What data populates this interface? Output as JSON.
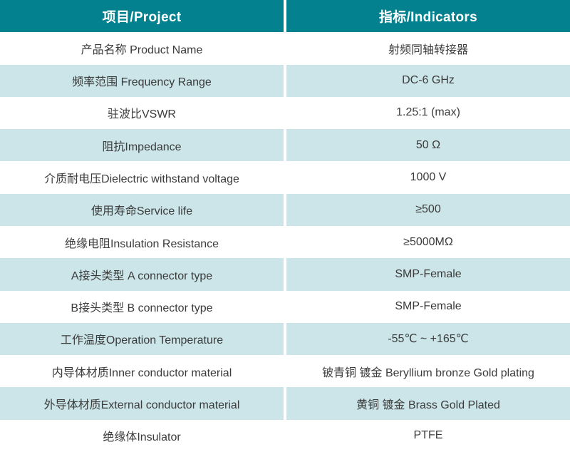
{
  "colors": {
    "header_bg": "#03818E",
    "header_text": "#FFFFFF",
    "row_alt_bg": "#CBE5E9",
    "row_bg": "#FFFFFF",
    "body_text": "#3B3B3B"
  },
  "table": {
    "header": {
      "project": "项目/Project",
      "indicators": "指标/Indicators"
    },
    "rows": [
      {
        "project": "产品名称 Product Name",
        "indicator": "射频同轴转接器"
      },
      {
        "project": "频率范围 Frequency Range",
        "indicator": "DC-6 GHz"
      },
      {
        "project": "驻波比VSWR",
        "indicator": "1.25:1 (max)"
      },
      {
        "project": "阻抗Impedance",
        "indicator": "50 Ω"
      },
      {
        "project": "介质耐电压Dielectric withstand voltage",
        "indicator": "1000 V"
      },
      {
        "project": "使用寿命Service life",
        "indicator": "≥500"
      },
      {
        "project": "绝缘电阻Insulation Resistance",
        "indicator": "≥5000MΩ"
      },
      {
        "project": "A接头类型 A connector type",
        "indicator": "SMP-Female"
      },
      {
        "project": "B接头类型 B connector type",
        "indicator": "SMP-Female"
      },
      {
        "project": "工作温度Operation Temperature",
        "indicator": "-55℃ ~ +165℃"
      },
      {
        "project": "内导体材质Inner conductor material",
        "indicator": "铍青铜 镀金 Beryllium bronze Gold plating"
      },
      {
        "project": "外导体材质External conductor material",
        "indicator": "黄铜 镀金 Brass Gold Plated"
      },
      {
        "project": "绝缘体Insulator",
        "indicator": "PTFE"
      }
    ]
  }
}
